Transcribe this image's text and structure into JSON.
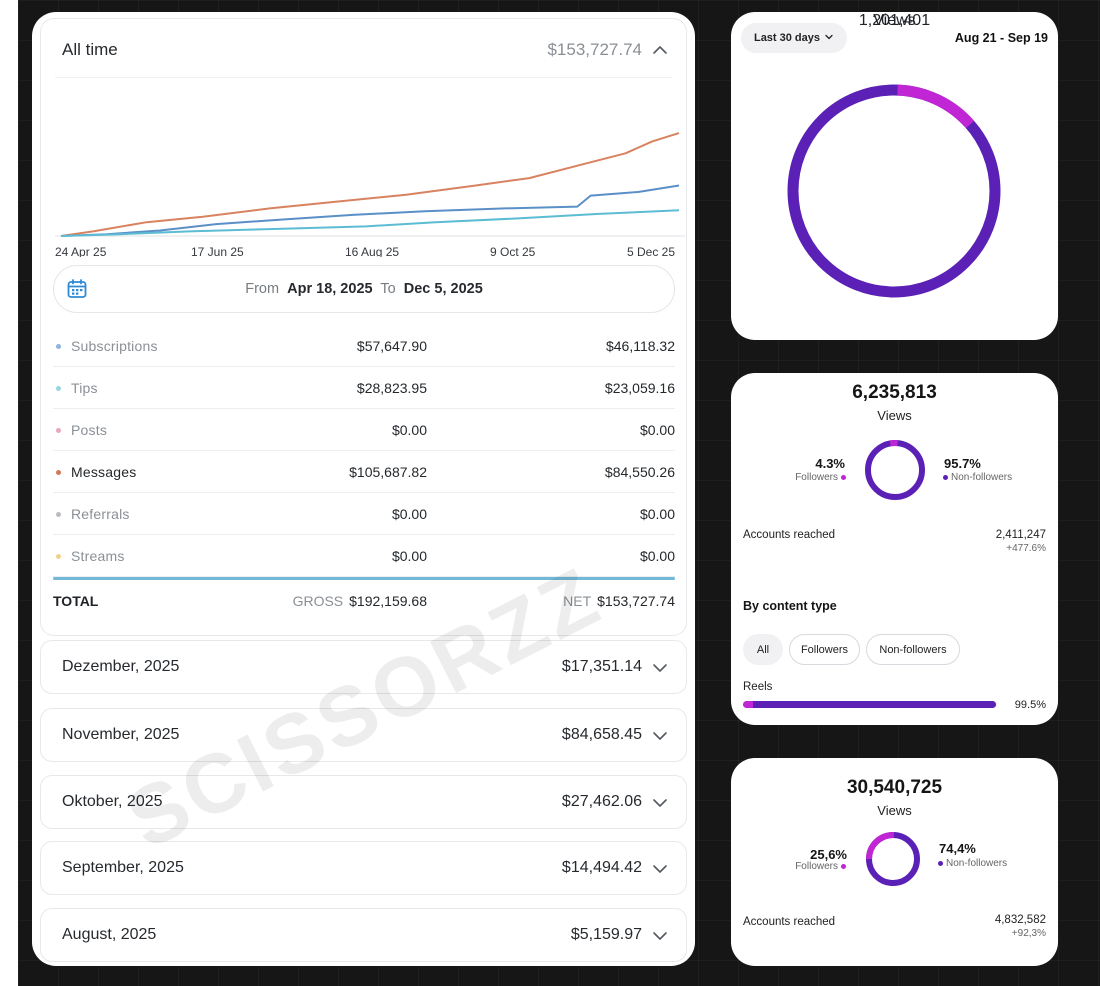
{
  "earnings": {
    "title": "All time",
    "total": "$153,727.74",
    "chart_data": {
      "type": "line",
      "x_ticks": [
        "24 Apr 25",
        "17 Jun 25",
        "16 Aug 25",
        "9 Oct 25",
        "5 Dec 25"
      ],
      "ylim": [
        0,
        160000
      ],
      "series": [
        {
          "name": "Messages",
          "color": "#d9825f",
          "points": [
            [
              "2025-04-18",
              0
            ],
            [
              "2025-04-30",
              5000
            ],
            [
              "2025-05-20",
              15000
            ],
            [
              "2025-06-10",
              21000
            ],
            [
              "2025-07-05",
              30000
            ],
            [
              "2025-08-01",
              38000
            ],
            [
              "2025-08-25",
              45000
            ],
            [
              "2025-09-20",
              55000
            ],
            [
              "2025-10-10",
              63000
            ],
            [
              "2025-10-30",
              78000
            ],
            [
              "2025-11-15",
              90000
            ],
            [
              "2025-11-25",
              103000
            ],
            [
              "2025-12-05",
              112000
            ]
          ]
        },
        {
          "name": "Subscriptions",
          "color": "#5b8fc7",
          "points": [
            [
              "2025-04-18",
              0
            ],
            [
              "2025-05-05",
              2000
            ],
            [
              "2025-05-25",
              6000
            ],
            [
              "2025-06-15",
              13000
            ],
            [
              "2025-07-10",
              18000
            ],
            [
              "2025-08-05",
              23000
            ],
            [
              "2025-09-01",
              27000
            ],
            [
              "2025-10-01",
              30000
            ],
            [
              "2025-10-28",
              32000
            ],
            [
              "2025-11-02",
              44000
            ],
            [
              "2025-11-20",
              48000
            ],
            [
              "2025-12-05",
              55000
            ]
          ]
        },
        {
          "name": "Tips",
          "color": "#5cbcd4",
          "points": [
            [
              "2025-04-18",
              0
            ],
            [
              "2025-05-10",
              2000
            ],
            [
              "2025-06-05",
              5000
            ],
            [
              "2025-07-10",
              8000
            ],
            [
              "2025-08-10",
              10500
            ],
            [
              "2025-09-05",
              15000
            ],
            [
              "2025-10-05",
              19000
            ],
            [
              "2025-11-05",
              24000
            ],
            [
              "2025-12-05",
              28000
            ]
          ]
        }
      ]
    },
    "date_range": {
      "from_label": "From",
      "from": "Apr 18, 2025",
      "to_label": "To",
      "to": "Dec 5, 2025"
    },
    "sources": [
      {
        "name": "Subscriptions",
        "gross": "$57,647.90",
        "net": "$46,118.32",
        "color": "#8fb4dc",
        "dark": false
      },
      {
        "name": "Tips",
        "gross": "$28,823.95",
        "net": "$23,059.16",
        "color": "#9ad3e4",
        "dark": false
      },
      {
        "name": "Posts",
        "gross": "$0.00",
        "net": "$0.00",
        "color": "#e8a6c0",
        "dark": false
      },
      {
        "name": "Messages",
        "gross": "$105,687.82",
        "net": "$84,550.26",
        "color": "#d07a5a",
        "dark": true
      },
      {
        "name": "Referrals",
        "gross": "$0.00",
        "net": "$0.00",
        "color": "#b9bcc2",
        "dark": false
      },
      {
        "name": "Streams",
        "gross": "$0.00",
        "net": "$0.00",
        "color": "#f2d08a",
        "dark": false
      }
    ],
    "totals": {
      "label": "TOTAL",
      "gross_label": "GROSS",
      "gross": "$192,159.68",
      "net_label": "NET",
      "net": "$153,727.74"
    },
    "months": [
      {
        "name": "Dezember, 2025",
        "value": "$17,351.14"
      },
      {
        "name": "November, 2025",
        "value": "$84,658.45"
      },
      {
        "name": "Oktober, 2025",
        "value": "$27,462.06"
      },
      {
        "name": "September, 2025",
        "value": "$14,494.42"
      },
      {
        "name": "August, 2025",
        "value": "$5,159.97"
      }
    ],
    "watermark": "SCISSORZZ"
  },
  "views_card": {
    "period": "Last 30 days",
    "dates": "Aug 21 - Sep 19",
    "label": "Views",
    "value": "1,201,401",
    "followers_fraction": 0.13,
    "colors": {
      "primary": "#5b21b6",
      "accent": "#c026d3"
    }
  },
  "card2": {
    "value": "6,235,813",
    "label": "Views",
    "followers_pct": "4.3%",
    "followers_label": "Followers",
    "nonfollowers_pct": "95.7%",
    "nonfollowers_label": "Non-followers",
    "followers_fraction": 0.043,
    "accounts_label": "Accounts reached",
    "accounts_value": "2,411,247",
    "accounts_delta": "+477.6%",
    "section_title": "By content type",
    "chips": [
      "All",
      "Followers",
      "Non-followers"
    ],
    "reels_label": "Reels",
    "reels_pct": "99.5%",
    "reels_fraction": 0.995
  },
  "card3": {
    "value": "30,540,725",
    "label": "Views",
    "followers_pct": "25,6%",
    "followers_label": "Followers",
    "nonfollowers_pct": "74,4%",
    "nonfollowers_label": "Non-followers",
    "followers_fraction": 0.256,
    "accounts_label": "Accounts reached",
    "accounts_value": "4,832,582",
    "accounts_delta": "+92,3%"
  }
}
